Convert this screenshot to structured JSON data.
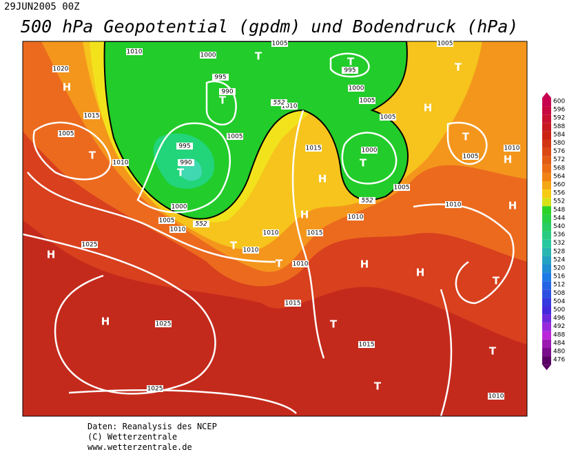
{
  "header": {
    "date": "29JUN2005 00Z",
    "title": "500 hPa Geopotential (gpdm) und Bodendruck (hPa)"
  },
  "footer": {
    "lines": [
      "Daten: Reanalysis des NCEP",
      "(C) Wetterzentrale",
      "www.wetterzentrale.de"
    ]
  },
  "legend": {
    "levels": [
      600,
      596,
      592,
      588,
      584,
      580,
      576,
      572,
      568,
      564,
      560,
      556,
      552,
      548,
      544,
      540,
      536,
      532,
      528,
      524,
      520,
      516,
      512,
      508,
      504,
      500,
      496,
      492,
      488,
      484,
      480,
      476
    ]
  },
  "map": {
    "labels": [
      "1010",
      "1020",
      "1015",
      "1005",
      "1010",
      "1000",
      "995",
      "990",
      "1005",
      "995",
      "990",
      "1000",
      "1005",
      "1010",
      "1025",
      "1010",
      "1015",
      "1005",
      "995",
      "1000",
      "1005",
      "1005",
      "1000",
      "1005",
      "1010",
      "1010",
      "1005",
      "1010",
      "1005",
      "1010",
      "1015",
      "1010",
      "1010",
      "1015",
      "1025",
      "1015",
      "1025",
      "1010",
      "552",
      "552",
      "552"
    ],
    "markers": [
      "H",
      "T",
      "T",
      "T",
      "T",
      "T",
      "H",
      "T",
      "T",
      "T",
      "H",
      "H",
      "H",
      "H",
      "T",
      "T",
      "H",
      "H",
      "H",
      "T",
      "H",
      "T",
      "T",
      "T"
    ]
  }
}
